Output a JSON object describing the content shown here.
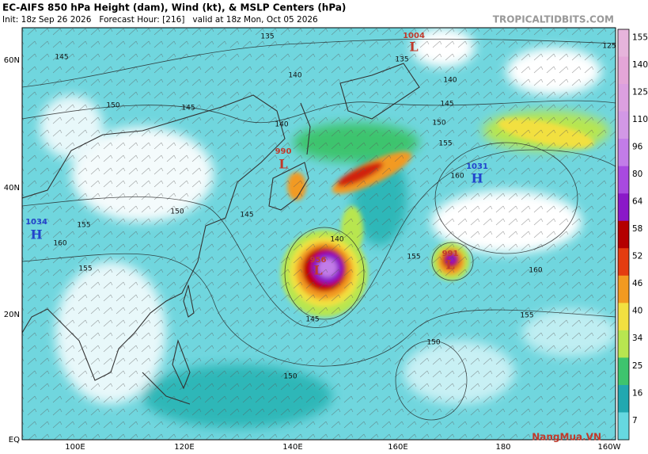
{
  "header": {
    "title": "EC-AIFS 850 hPa Height (dam), Wind (kt), & MSLP Centers (hPa)",
    "init": "Init: 18z Sep 26 2026   Forecast Hour: [216]   valid at 18z Mon, Oct 05 2026",
    "brand": "TROPICALTIDBITS.COM"
  },
  "lat_labels": [
    "60N",
    "40N",
    "20N",
    "EQ"
  ],
  "lon_labels": [
    "100E",
    "120E",
    "140E",
    "160E",
    "180",
    "160W"
  ],
  "colorbar": {
    "labels": [
      155,
      140,
      125,
      110,
      96,
      80,
      64,
      58,
      52,
      46,
      40,
      34,
      25,
      16,
      7
    ],
    "colors": [
      "#e6b4dc",
      "#e4a6d8",
      "#dca0e0",
      "#d298e6",
      "#c27ce8",
      "#a84ae0",
      "#8a18c8",
      "#b40000",
      "#e43c10",
      "#f29a20",
      "#f2e040",
      "#b8e650",
      "#3ec46e",
      "#22a8b0",
      "#66d8e0"
    ]
  },
  "centers": [
    {
      "value": "1004",
      "letter": "L"
    },
    {
      "value": "990",
      "letter": "L"
    },
    {
      "value": "1031",
      "letter": "H"
    },
    {
      "value": "1034",
      "letter": "H"
    },
    {
      "value": "956",
      "letter": "L"
    },
    {
      "value": "991",
      "letter": "L"
    }
  ],
  "contour_labels": [
    135,
    145,
    140,
    150,
    145,
    140,
    150,
    155,
    160,
    150,
    155,
    145,
    160,
    155,
    140,
    155,
    160,
    155,
    145,
    150,
    150,
    140,
    145,
    135,
    125
  ],
  "watermark": "NangMua.VN"
}
